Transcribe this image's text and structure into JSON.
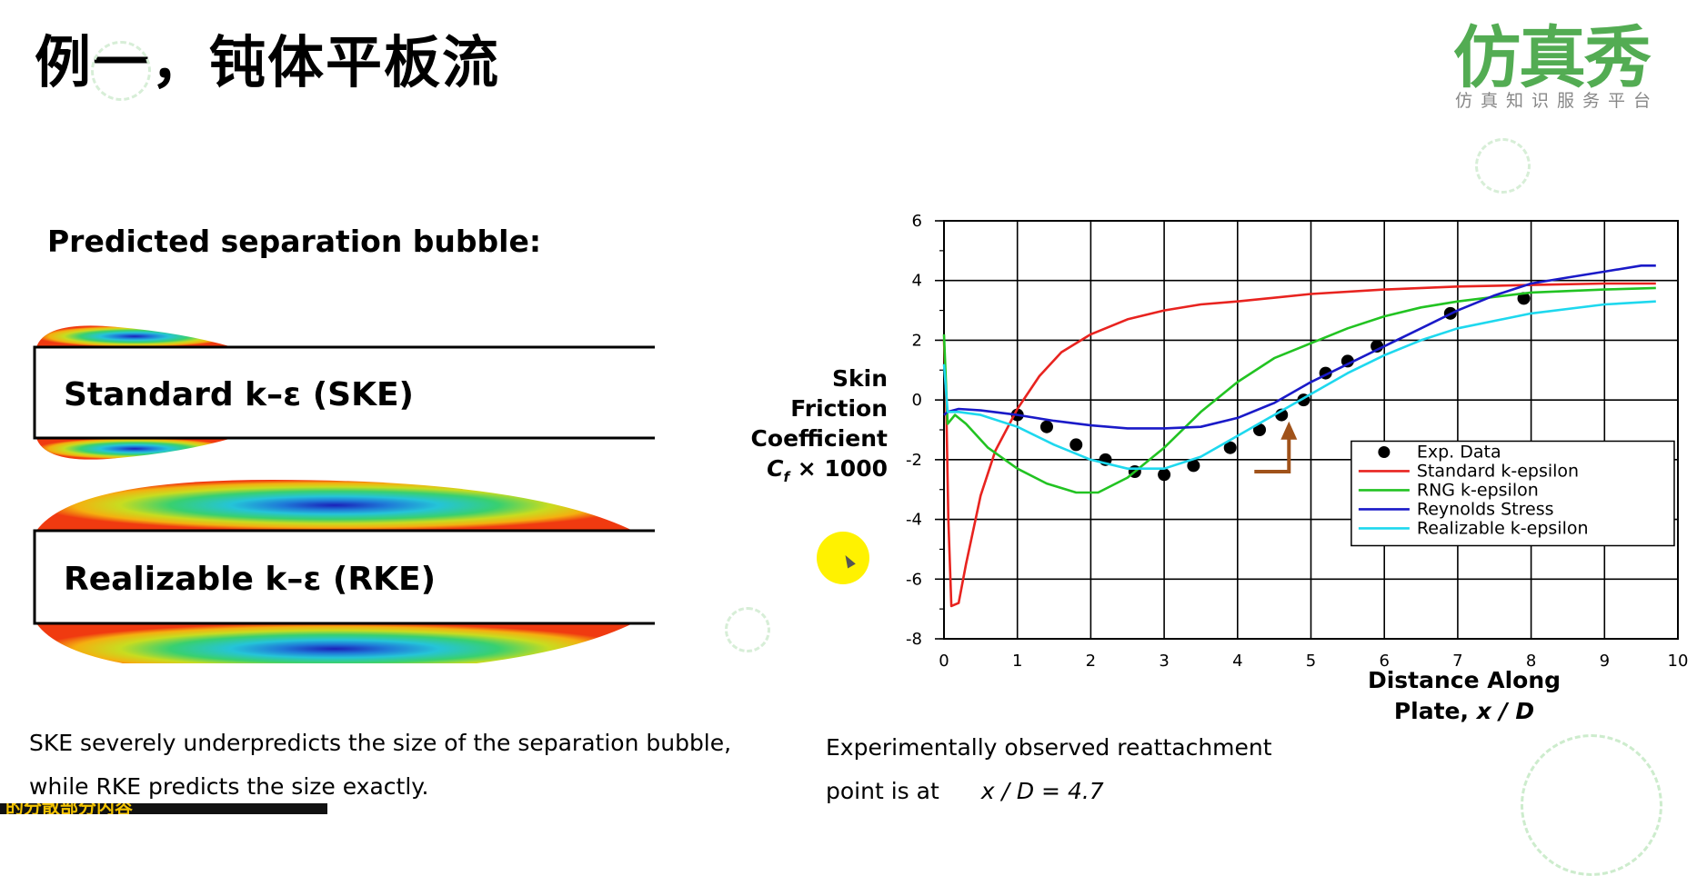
{
  "page": {
    "title": "例一，钝体平板流",
    "logo_text": "仿真秀",
    "logo_subtitle": "仿真知识服务平台",
    "subtitle": "Predicted separation bubble:",
    "model_labels": [
      "Standard k–ε (SKE)",
      "Realizable k–ε (RKE)"
    ],
    "caption_lines": [
      "SKE severely  underpredicts the size of  the separation bubble,",
      "while RKE predicts the size exactly."
    ],
    "ylabel_lines": [
      "Skin",
      "Friction",
      "Coefficient"
    ],
    "ylabel_formula": "C",
    "ylabel_sub": "f",
    "ylabel_rest": " × 1000",
    "xlabel_line1": "Distance Along",
    "xlabel_line2_prefix": "Plate, ",
    "xlabel_line2_var": "x / D",
    "note_line1": "Experimentally observed reattachment",
    "note_line2_prefix": "point is at",
    "note_line2_value": "x / D = 4.7",
    "bottom_strip_text": "的分散部分内容"
  },
  "colors": {
    "logo_green": "#4aa84a",
    "standard": "#e8231f",
    "rng": "#22c322",
    "reynolds": "#1a1ac8",
    "realizable": "#1ed8ee",
    "arrow": "#a0521a",
    "cursor": "#fff200"
  },
  "chart_data": {
    "type": "line",
    "xlim": [
      0,
      10
    ],
    "ylim": [
      -8,
      6
    ],
    "x_ticks": [
      0,
      1,
      2,
      3,
      4,
      5,
      6,
      7,
      8,
      9,
      10
    ],
    "y_ticks": [
      -8,
      -6,
      -4,
      -2,
      0,
      2,
      4,
      6
    ],
    "grid": true,
    "legend_position": "right",
    "series": [
      {
        "name": "Exp. Data",
        "kind": "scatter",
        "color": "#000000",
        "x": [
          1.0,
          1.4,
          1.8,
          2.2,
          2.6,
          3.0,
          3.4,
          3.9,
          4.3,
          4.6,
          4.9,
          5.2,
          5.5,
          5.9,
          6.9,
          7.9
        ],
        "y": [
          -0.5,
          -0.9,
          -1.5,
          -2.0,
          -2.4,
          -2.5,
          -2.2,
          -1.6,
          -1.0,
          -0.5,
          0.0,
          0.9,
          1.3,
          1.8,
          2.9,
          3.4
        ]
      },
      {
        "name": "Standard k-epsilon",
        "color": "#e8231f",
        "x": [
          0.0,
          0.03,
          0.06,
          0.1,
          0.2,
          0.3,
          0.5,
          0.7,
          1.0,
          1.3,
          1.6,
          2.0,
          2.5,
          3.0,
          3.5,
          4.0,
          5.0,
          6.0,
          7.0,
          8.0,
          9.0,
          9.7
        ],
        "y": [
          2.0,
          0.0,
          -4.0,
          -6.9,
          -6.8,
          -5.5,
          -3.2,
          -1.7,
          -0.3,
          0.8,
          1.6,
          2.2,
          2.7,
          3.0,
          3.2,
          3.3,
          3.55,
          3.7,
          3.8,
          3.85,
          3.9,
          3.9
        ]
      },
      {
        "name": "RNG k-epsilon",
        "color": "#22c322",
        "x": [
          0.0,
          0.05,
          0.15,
          0.3,
          0.6,
          1.0,
          1.4,
          1.8,
          2.1,
          2.5,
          3.0,
          3.5,
          4.0,
          4.5,
          5.0,
          5.5,
          6.0,
          6.5,
          7.0,
          8.0,
          9.0,
          9.7
        ],
        "y": [
          2.2,
          -0.8,
          -0.5,
          -0.8,
          -1.6,
          -2.3,
          -2.8,
          -3.1,
          -3.1,
          -2.6,
          -1.6,
          -0.4,
          0.6,
          1.4,
          1.9,
          2.4,
          2.8,
          3.1,
          3.3,
          3.6,
          3.7,
          3.75
        ]
      },
      {
        "name": "Reynolds Stress",
        "color": "#1a1ac8",
        "x": [
          0.0,
          0.05,
          0.2,
          0.5,
          1.0,
          1.5,
          2.0,
          2.5,
          3.0,
          3.5,
          4.0,
          4.5,
          5.0,
          5.5,
          6.0,
          6.5,
          7.0,
          7.5,
          8.0,
          8.5,
          9.0,
          9.5,
          9.7
        ],
        "y": [
          -0.5,
          -0.4,
          -0.3,
          -0.35,
          -0.5,
          -0.7,
          -0.85,
          -0.95,
          -0.95,
          -0.9,
          -0.6,
          -0.1,
          0.6,
          1.2,
          1.8,
          2.4,
          3.0,
          3.5,
          3.9,
          4.1,
          4.3,
          4.5,
          4.5
        ]
      },
      {
        "name": "Realizable k-epsilon",
        "color": "#1ed8ee",
        "x": [
          0.0,
          0.05,
          0.2,
          0.5,
          1.0,
          1.5,
          2.0,
          2.5,
          3.0,
          3.5,
          4.0,
          4.5,
          5.0,
          5.5,
          6.0,
          6.5,
          7.0,
          8.0,
          9.0,
          9.7
        ],
        "y": [
          1.2,
          -0.4,
          -0.4,
          -0.5,
          -0.9,
          -1.5,
          -2.0,
          -2.3,
          -2.3,
          -1.9,
          -1.2,
          -0.5,
          0.2,
          0.9,
          1.5,
          2.0,
          2.4,
          2.9,
          3.2,
          3.3
        ]
      }
    ]
  }
}
